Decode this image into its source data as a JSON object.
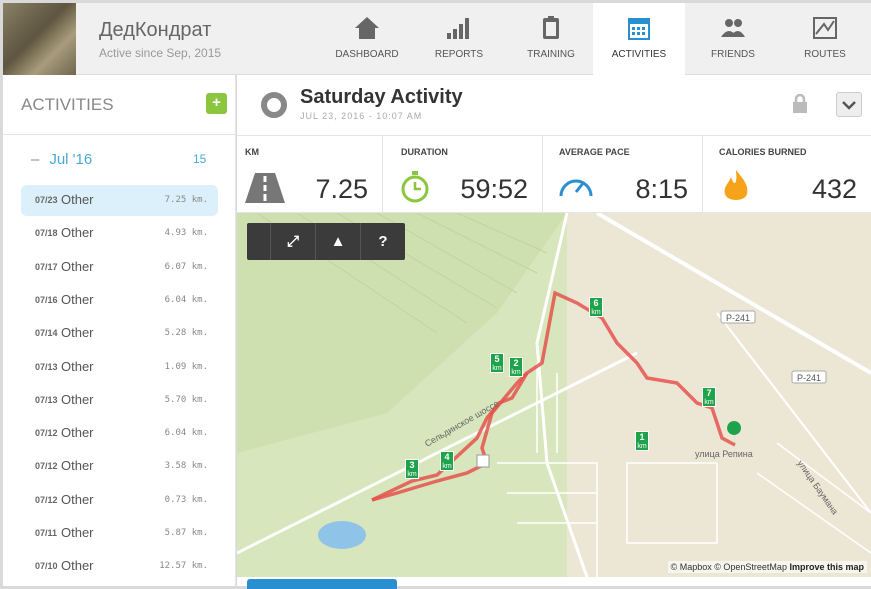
{
  "header": {
    "username": "ДедКондрат",
    "active_since": "Active since Sep, 2015",
    "nav": [
      {
        "label": "DASHBOARD",
        "icon": "home-icon"
      },
      {
        "label": "REPORTS",
        "icon": "bar-chart-icon"
      },
      {
        "label": "TRAINING",
        "icon": "clipboard-icon"
      },
      {
        "label": "ACTIVITIES",
        "icon": "calendar-icon",
        "active": true
      },
      {
        "label": "FRIENDS",
        "icon": "friends-icon"
      },
      {
        "label": "ROUTES",
        "icon": "route-map-icon"
      }
    ]
  },
  "sidebar": {
    "title": "ACTIVITIES",
    "add_label": "+",
    "month": "Jul '16",
    "month_toggle": "–",
    "month_count": "15",
    "items": [
      {
        "date": "07/23",
        "type": "Other",
        "dist": "7.25 km."
      },
      {
        "date": "07/18",
        "type": "Other",
        "dist": "4.93 km."
      },
      {
        "date": "07/17",
        "type": "Other",
        "dist": "6.07 km."
      },
      {
        "date": "07/16",
        "type": "Other",
        "dist": "6.04 km."
      },
      {
        "date": "07/14",
        "type": "Other",
        "dist": "5.28 km."
      },
      {
        "date": "07/13",
        "type": "Other",
        "dist": "1.09 km."
      },
      {
        "date": "07/13",
        "type": "Other",
        "dist": "5.70 km."
      },
      {
        "date": "07/12",
        "type": "Other",
        "dist": "6.04 km."
      },
      {
        "date": "07/12",
        "type": "Other",
        "dist": "3.58 km."
      },
      {
        "date": "07/12",
        "type": "Other",
        "dist": "0.73 km."
      },
      {
        "date": "07/11",
        "type": "Other",
        "dist": "5.87 km."
      },
      {
        "date": "07/10",
        "type": "Other",
        "dist": "12.57 km."
      }
    ]
  },
  "activity": {
    "title": "Saturday Activity",
    "date": "JUL 23, 2016  -  10:07 AM",
    "stats": [
      {
        "label": "KM",
        "value": "7.25",
        "icon": "road-icon"
      },
      {
        "label": "DURATION",
        "value": "59:52",
        "icon": "stopwatch-icon"
      },
      {
        "label": "AVERAGE PACE",
        "value": "8:15",
        "icon": "speedometer-icon"
      },
      {
        "label": "CALORIES BURNED",
        "value": "432",
        "icon": "flame-icon"
      }
    ]
  },
  "map": {
    "tools": [
      "",
      "⤢",
      "▲",
      "?"
    ],
    "attribution": "© Mapbox © OpenStreetMap",
    "improve": "Improve this map",
    "markers": [
      "1",
      "2",
      "3",
      "4",
      "5",
      "6",
      "7"
    ],
    "marker_unit": "km",
    "labels": {
      "road1": "P-241",
      "road2": "P-241",
      "street1": "улица Репина",
      "street2": "улица Баумана",
      "highway": "Сельдинское шоссе"
    },
    "route_color": "#e5524f",
    "marker_color": "#1fa34a"
  }
}
